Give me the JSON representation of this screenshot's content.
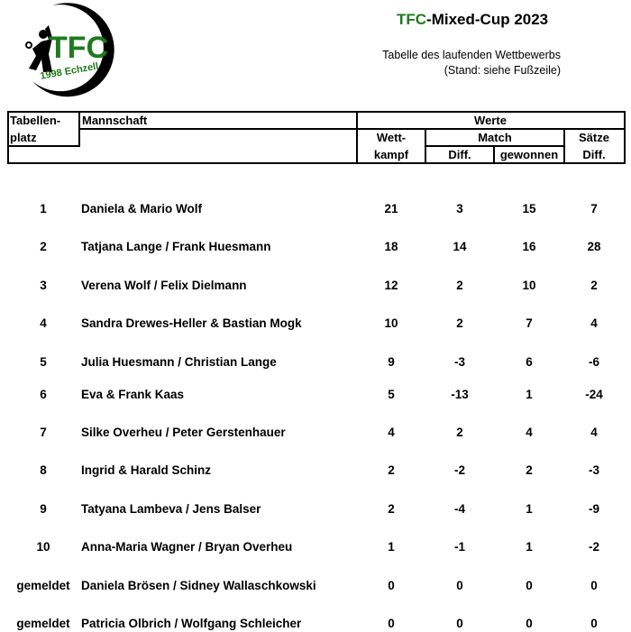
{
  "logo": {
    "text": "TFC",
    "subtext": "1998 Echzell",
    "color": "#1e7a1e"
  },
  "header": {
    "title_accent": "TFC",
    "title_rest": "-Mixed-Cup 2023",
    "subtitle1": "Tabelle des laufenden Wettbewerbs",
    "subtitle2": "(Stand: siehe Fußzeile)"
  },
  "table": {
    "headers": {
      "platz1": "Tabellen-",
      "platz2": "platz",
      "team": "Mannschaft",
      "werte": "Werte",
      "wett1": "Wett-",
      "wett2": "kampf",
      "match": "Match",
      "diff": "Diff.",
      "gewonnen": "gewonnen",
      "saetze1": "Sätze",
      "saetze2": "Diff."
    },
    "rows": [
      {
        "place": "1",
        "team": "Daniela & Mario Wolf",
        "wettkampf": "21",
        "match_diff": "3",
        "gewonnen": "15",
        "saetze_diff": "7"
      },
      {
        "place": "2",
        "team": "Tatjana Lange / Frank Huesmann",
        "wettkampf": "18",
        "match_diff": "14",
        "gewonnen": "16",
        "saetze_diff": "28"
      },
      {
        "place": "3",
        "team": "Verena Wolf / Felix Dielmann",
        "wettkampf": "12",
        "match_diff": "2",
        "gewonnen": "10",
        "saetze_diff": "2"
      },
      {
        "place": "4",
        "team": "Sandra Drewes-Heller & Bastian Mogk",
        "wettkampf": "10",
        "match_diff": "2",
        "gewonnen": "7",
        "saetze_diff": "4"
      },
      {
        "place": "5",
        "team": "Julia Huesmann / Christian Lange",
        "wettkampf": "9",
        "match_diff": "-3",
        "gewonnen": "6",
        "saetze_diff": "-6"
      },
      {
        "place": "6",
        "team": "Eva & Frank Kaas",
        "wettkampf": "5",
        "match_diff": "-13",
        "gewonnen": "1",
        "saetze_diff": "-24"
      },
      {
        "place": "7",
        "team": "Silke Overheu / Peter Gerstenhauer",
        "wettkampf": "4",
        "match_diff": "2",
        "gewonnen": "4",
        "saetze_diff": "4"
      },
      {
        "place": "8",
        "team": "Ingrid & Harald Schinz",
        "wettkampf": "2",
        "match_diff": "-2",
        "gewonnen": "2",
        "saetze_diff": "-3"
      },
      {
        "place": "9",
        "team": "Tatyana Lambeva / Jens Balser",
        "wettkampf": "2",
        "match_diff": "-4",
        "gewonnen": "1",
        "saetze_diff": "-9"
      },
      {
        "place": "10",
        "team": "Anna-Maria Wagner / Bryan Overheu",
        "wettkampf": "1",
        "match_diff": "-1",
        "gewonnen": "1",
        "saetze_diff": "-2"
      },
      {
        "place": "gemeldet",
        "team": "Daniela Brösen / Sidney Wallaschkowski",
        "wettkampf": "0",
        "match_diff": "0",
        "gewonnen": "0",
        "saetze_diff": "0"
      },
      {
        "place": "gemeldet",
        "team": "Patricia Olbrich / Wolfgang Schleicher",
        "wettkampf": "0",
        "match_diff": "0",
        "gewonnen": "0",
        "saetze_diff": "0"
      }
    ]
  }
}
